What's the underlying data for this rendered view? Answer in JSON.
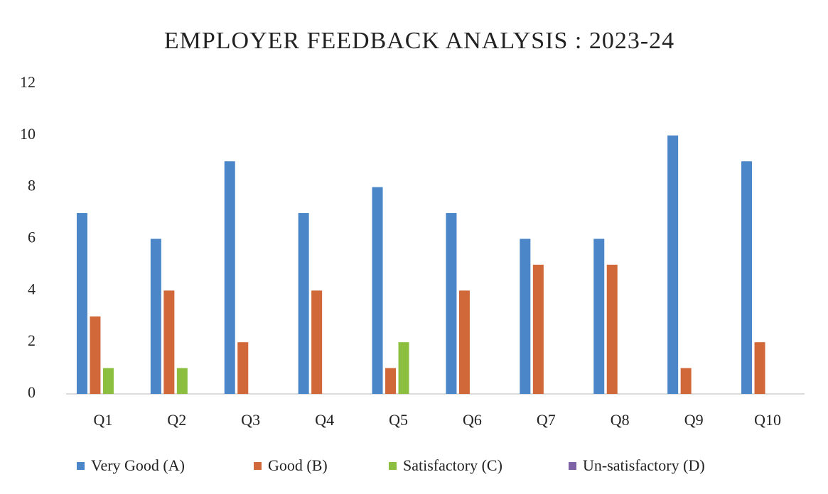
{
  "chart_data": {
    "type": "bar",
    "title": "EMPLOYER  FEEDBACK  ANALYSIS : 2023-24",
    "categories": [
      "Q1",
      "Q2",
      "Q3",
      "Q4",
      "Q5",
      "Q6",
      "Q7",
      "Q8",
      "Q9",
      "Q10"
    ],
    "series": [
      {
        "name": "Very Good (A)",
        "color": "#4a86c8",
        "values": [
          7,
          6,
          9,
          7,
          8,
          7,
          6,
          6,
          10,
          9
        ]
      },
      {
        "name": "Good (B)",
        "color": "#d0683a",
        "values": [
          3,
          4,
          2,
          4,
          1,
          4,
          5,
          5,
          1,
          2
        ]
      },
      {
        "name": "Satisfactory (C)",
        "color": "#8cbf3f",
        "values": [
          1,
          1,
          0,
          0,
          2,
          0,
          0,
          0,
          0,
          0
        ]
      },
      {
        "name": "Un-satisfactory (D)",
        "color": "#7d62a6",
        "values": [
          0,
          0,
          0,
          0,
          0,
          0,
          0,
          0,
          0,
          0
        ]
      }
    ],
    "ylim": [
      0,
      12
    ],
    "yticks": [
      0,
      2,
      4,
      6,
      8,
      10,
      12
    ],
    "legend": "bottom"
  }
}
